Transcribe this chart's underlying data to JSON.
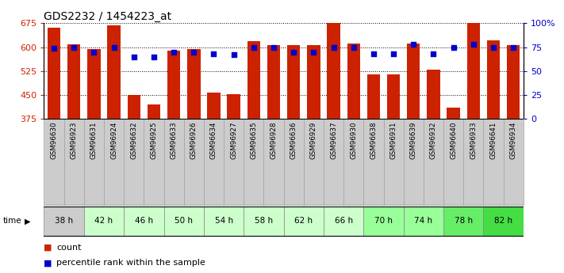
{
  "title": "GDS2232 / 1454223_at",
  "gsm_labels": [
    "GSM96630",
    "GSM96923",
    "GSM96631",
    "GSM96924",
    "GSM96632",
    "GSM96925",
    "GSM96633",
    "GSM96926",
    "GSM96634",
    "GSM96927",
    "GSM96635",
    "GSM96928",
    "GSM96636",
    "GSM96929",
    "GSM96637",
    "GSM96930",
    "GSM96638",
    "GSM96931",
    "GSM96639",
    "GSM96932",
    "GSM96640",
    "GSM96933",
    "GSM96641",
    "GSM96934"
  ],
  "bar_values": [
    660,
    608,
    595,
    668,
    450,
    420,
    590,
    595,
    458,
    453,
    618,
    605,
    605,
    605,
    675,
    610,
    515,
    515,
    610,
    530,
    410,
    675,
    622,
    605
  ],
  "percentile_values": [
    74,
    75,
    70,
    75,
    65,
    65,
    70,
    70,
    68,
    67,
    75,
    75,
    70,
    70,
    75,
    75,
    68,
    68,
    78,
    68,
    75,
    78,
    75,
    75
  ],
  "time_labels": [
    "38 h",
    "42 h",
    "46 h",
    "50 h",
    "54 h",
    "58 h",
    "62 h",
    "66 h",
    "70 h",
    "74 h",
    "78 h",
    "82 h"
  ],
  "time_colors": [
    "#cccccc",
    "#ccffcc",
    "#ccffcc",
    "#ccffcc",
    "#ccffcc",
    "#ccffcc",
    "#ccffcc",
    "#ccffcc",
    "#99ff99",
    "#99ff99",
    "#66ee66",
    "#44dd44"
  ],
  "ylim_left": [
    375,
    675
  ],
  "ylim_right": [
    0,
    100
  ],
  "yticks_left": [
    375,
    450,
    525,
    600,
    675
  ],
  "yticks_right": [
    0,
    25,
    50,
    75,
    100
  ],
  "ytick_labels_right": [
    "0",
    "25",
    "50",
    "75",
    "100%"
  ],
  "bar_color": "#cc2200",
  "dot_color": "#0000cc",
  "bg_color": "#ffffff",
  "label_bg_color": "#cccccc",
  "bar_width": 0.65
}
